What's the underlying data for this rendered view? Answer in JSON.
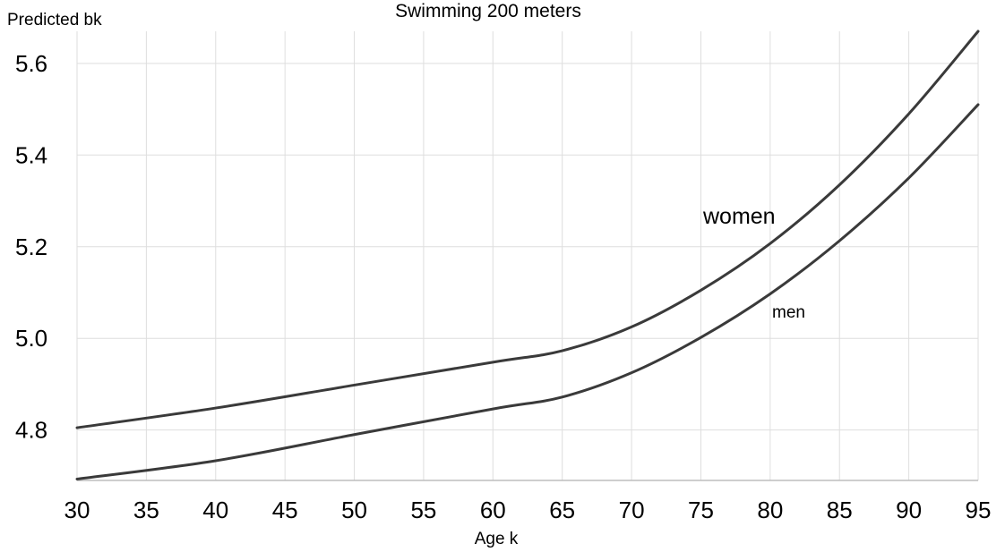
{
  "chart_data": {
    "type": "line",
    "title": "Swimming 200 meters",
    "xlabel": "Age k",
    "ylabel": "Predicted bk",
    "xlim": [
      30,
      95
    ],
    "ylim": [
      4.69,
      5.67
    ],
    "x_ticks": [
      30,
      35,
      40,
      45,
      50,
      55,
      60,
      65,
      70,
      75,
      80,
      85,
      90,
      95
    ],
    "y_ticks": [
      "4.8",
      "5.0",
      "5.2",
      "5.4",
      "5.6"
    ],
    "grid": true,
    "series": [
      {
        "name": "women",
        "color": "#3a3a3a",
        "x": [
          30,
          40,
          50,
          60,
          65,
          70,
          75,
          80,
          85,
          90,
          95
        ],
        "y": [
          4.805,
          4.848,
          4.898,
          4.948,
          4.973,
          5.025,
          5.105,
          5.207,
          5.335,
          5.49,
          5.67
        ]
      },
      {
        "name": "men",
        "color": "#3a3a3a",
        "x": [
          30,
          40,
          50,
          60,
          65,
          70,
          75,
          80,
          85,
          90,
          95
        ],
        "y": [
          4.693,
          4.733,
          4.79,
          4.846,
          4.872,
          4.925,
          5.002,
          5.097,
          5.213,
          5.35,
          5.51
        ]
      }
    ]
  }
}
